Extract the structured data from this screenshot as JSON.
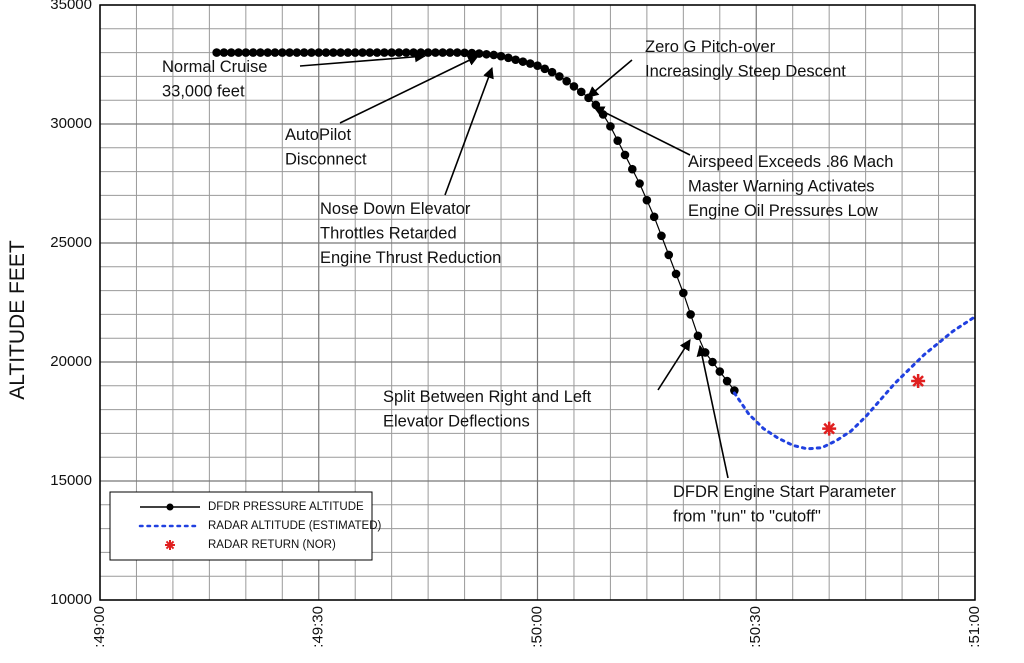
{
  "chart_data": {
    "type": "line",
    "y_label": "ALTITUDE FEET",
    "xlim": [
      0,
      120
    ],
    "xticks": [
      {
        "value": 0,
        "label": ":49:00"
      },
      {
        "value": 30,
        "label": ":49:30"
      },
      {
        "value": 60,
        "label": ":50:00"
      },
      {
        "value": 90,
        "label": ":50:30"
      },
      {
        "value": 120,
        "label": ":51:00"
      }
    ],
    "ylim": [
      10000,
      35000
    ],
    "yticks": [
      10000,
      15000,
      20000,
      25000,
      30000,
      35000
    ],
    "grid": true,
    "legend": "lower left",
    "series": [
      {
        "name": "DFDR PRESSURE ALTITUDE",
        "color": "#000000",
        "style": "line-dots",
        "x": [
          16,
          17,
          18,
          19,
          20,
          21,
          22,
          23,
          24,
          25,
          26,
          27,
          28,
          29,
          30,
          31,
          32,
          33,
          34,
          35,
          36,
          37,
          38,
          39,
          40,
          41,
          42,
          43,
          44,
          45,
          46,
          47,
          48,
          49,
          50,
          51,
          52,
          53,
          54,
          55,
          56,
          57,
          58,
          59,
          60,
          61,
          62,
          63,
          64,
          65,
          66,
          67,
          68,
          69,
          70,
          71,
          72,
          73,
          74,
          75,
          76,
          77,
          78,
          79,
          80,
          81,
          82,
          83,
          84,
          85,
          86,
          87
        ],
        "values": [
          33000,
          33000,
          33000,
          33000,
          33000,
          33000,
          33000,
          33000,
          33000,
          33000,
          33000,
          33000,
          33000,
          33000,
          33000,
          33000,
          33000,
          33000,
          33000,
          33000,
          33000,
          33000,
          33000,
          33000,
          33000,
          33000,
          33000,
          33000,
          33000,
          33000,
          33000,
          33000,
          33000,
          33000,
          32990,
          32980,
          32960,
          32930,
          32900,
          32850,
          32780,
          32700,
          32620,
          32540,
          32450,
          32320,
          32180,
          32000,
          31800,
          31580,
          31350,
          31100,
          30800,
          30400,
          29900,
          29300,
          28700,
          28100,
          27500,
          26800,
          26100,
          25300,
          24500,
          23700,
          22900,
          22000,
          21100,
          20400,
          20000,
          19600,
          19200,
          18800
        ]
      },
      {
        "name": "RADAR ALTITUDE (ESTIMATED)",
        "color": "#2040e0",
        "style": "dotted",
        "x": [
          87,
          89,
          91,
          93,
          95,
          97,
          99,
          101,
          103,
          105,
          107,
          109,
          111,
          113,
          115,
          117,
          120
        ],
        "values": [
          18700,
          17800,
          17200,
          16800,
          16500,
          16350,
          16400,
          16700,
          17100,
          17700,
          18400,
          19100,
          19700,
          20300,
          20800,
          21300,
          21900
        ]
      },
      {
        "name": "RADAR RETURN (NOR)",
        "color": "#e02020",
        "style": "star",
        "x": [
          100,
          112.2
        ],
        "values": [
          17200,
          19200
        ]
      }
    ],
    "annotations": [
      [
        "Normal Cruise",
        "33,000 feet"
      ],
      [
        "AutoPilot",
        "Disconnect"
      ],
      [
        "Nose Down Elevator",
        "Throttles Retarded",
        "Engine Thrust Reduction"
      ],
      [
        "Zero G Pitch-over",
        "Increasingly Steep Descent"
      ],
      [
        "Airspeed Exceeds .86 Mach",
        "Master Warning Activates",
        "Engine Oil Pressures Low"
      ],
      [
        "Split Between Right and Left",
        "Elevator Deflections"
      ],
      [
        "DFDR Engine Start Parameter",
        "from \"run\" to \"cutoff\""
      ]
    ]
  }
}
